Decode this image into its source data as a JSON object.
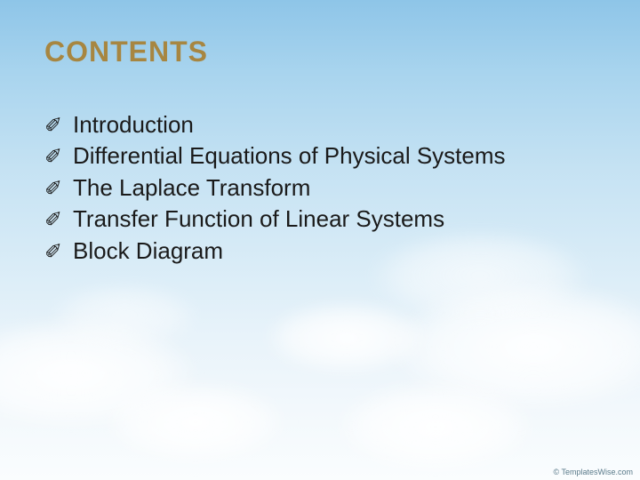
{
  "slide": {
    "title": "CONTENTS",
    "title_color": "#a78641",
    "bullet_glyph": "✐",
    "bullet_color": "#1a1a1a",
    "item_color": "#1a1a1a",
    "items": [
      "Introduction",
      "Differential Equations of Physical Systems",
      "The Laplace Transform",
      "Transfer Function of Linear Systems",
      "Block Diagram"
    ],
    "title_fontsize": 32,
    "item_fontsize": 26
  },
  "background": {
    "gradient_top": "#8ec5e8",
    "gradient_bottom": "#fafdfe",
    "cloud_color": "#ffffff"
  },
  "watermark": {
    "text": "© TemplatesWise.com",
    "color": "#5a7a8a"
  }
}
